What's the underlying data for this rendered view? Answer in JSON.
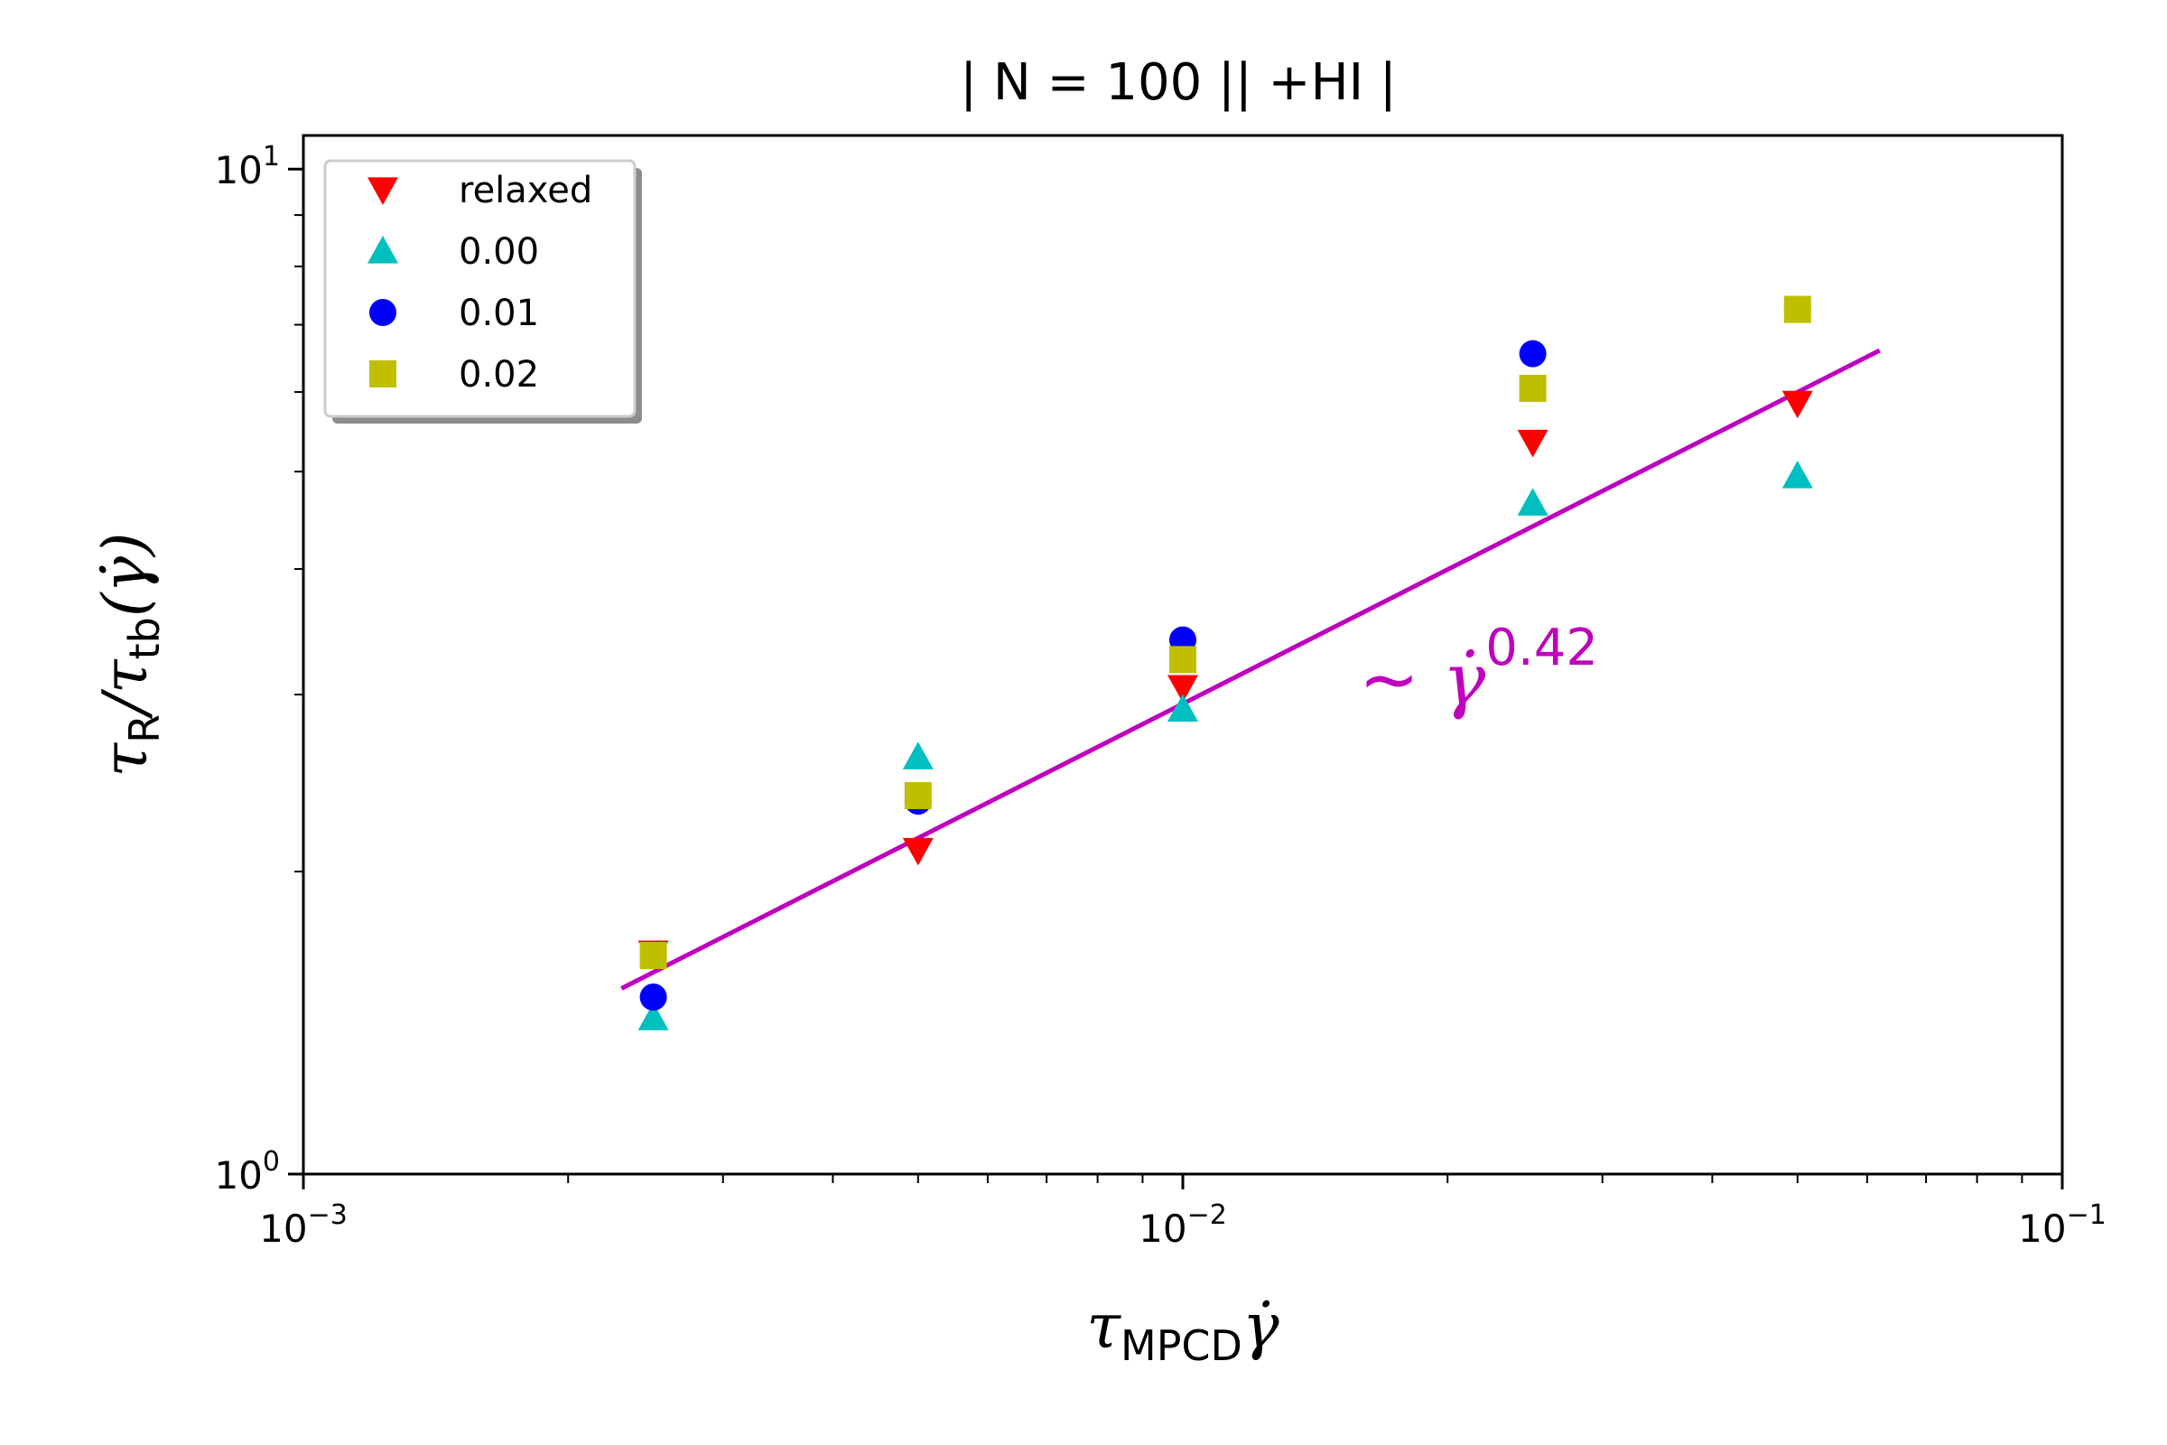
{
  "chart_data": {
    "type": "scatter",
    "title": "| N = 100 || +HI  |",
    "xlabel": {
      "base": "τ",
      "sub": "MPCD",
      "tail": "γ̇"
    },
    "ylabel": {
      "base": "τ",
      "sub1": "R",
      "mid": "/τ",
      "sub2": "tb",
      "tail": "(γ̇)"
    },
    "xscale": "log",
    "yscale": "log",
    "xlim": [
      0.001,
      0.1
    ],
    "ylim": [
      1,
      10.8
    ],
    "x_ticks": [
      {
        "value": 0.001,
        "base": "10",
        "exp": "−3"
      },
      {
        "value": 0.01,
        "base": "10",
        "exp": "−2"
      },
      {
        "value": 0.1,
        "base": "10",
        "exp": "−1"
      }
    ],
    "y_ticks": [
      {
        "value": 1,
        "base": "10",
        "exp": "0"
      },
      {
        "value": 10,
        "base": "10",
        "exp": "1"
      }
    ],
    "legend_position": "top-left",
    "series": [
      {
        "name": "relaxed",
        "marker": "triangle-down",
        "color": "#ff0000",
        "x": [
          0.0025,
          0.005,
          0.01,
          0.025,
          0.05
        ],
        "y": [
          1.66,
          2.1,
          3.05,
          5.35,
          5.85
        ]
      },
      {
        "name": "0.00",
        "marker": "triangle-up",
        "color": "#00bfbf",
        "x": [
          0.0025,
          0.005,
          0.01,
          0.025,
          0.05
        ],
        "y": [
          1.43,
          2.6,
          2.9,
          4.65,
          4.95
        ]
      },
      {
        "name": "0.01",
        "marker": "circle",
        "color": "#0000ff",
        "x": [
          0.0025,
          0.005,
          0.01,
          0.025,
          0.05
        ],
        "y": [
          1.5,
          2.35,
          3.4,
          6.55,
          7.25
        ]
      },
      {
        "name": "0.02",
        "marker": "square",
        "color": "#bfbf00",
        "x": [
          0.0025,
          0.005,
          0.01,
          0.025,
          0.05
        ],
        "y": [
          1.65,
          2.38,
          3.25,
          6.05,
          7.25
        ]
      }
    ],
    "fit_line": {
      "color": "#bf00bf",
      "x": [
        0.0023,
        0.062
      ],
      "y": [
        1.53,
        6.6
      ]
    },
    "annotation": {
      "prefix": "~ ",
      "symbol": "γ̇",
      "exp": "0.42",
      "color": "#bf00bf",
      "x": 0.0142,
      "y": 3.0
    }
  }
}
